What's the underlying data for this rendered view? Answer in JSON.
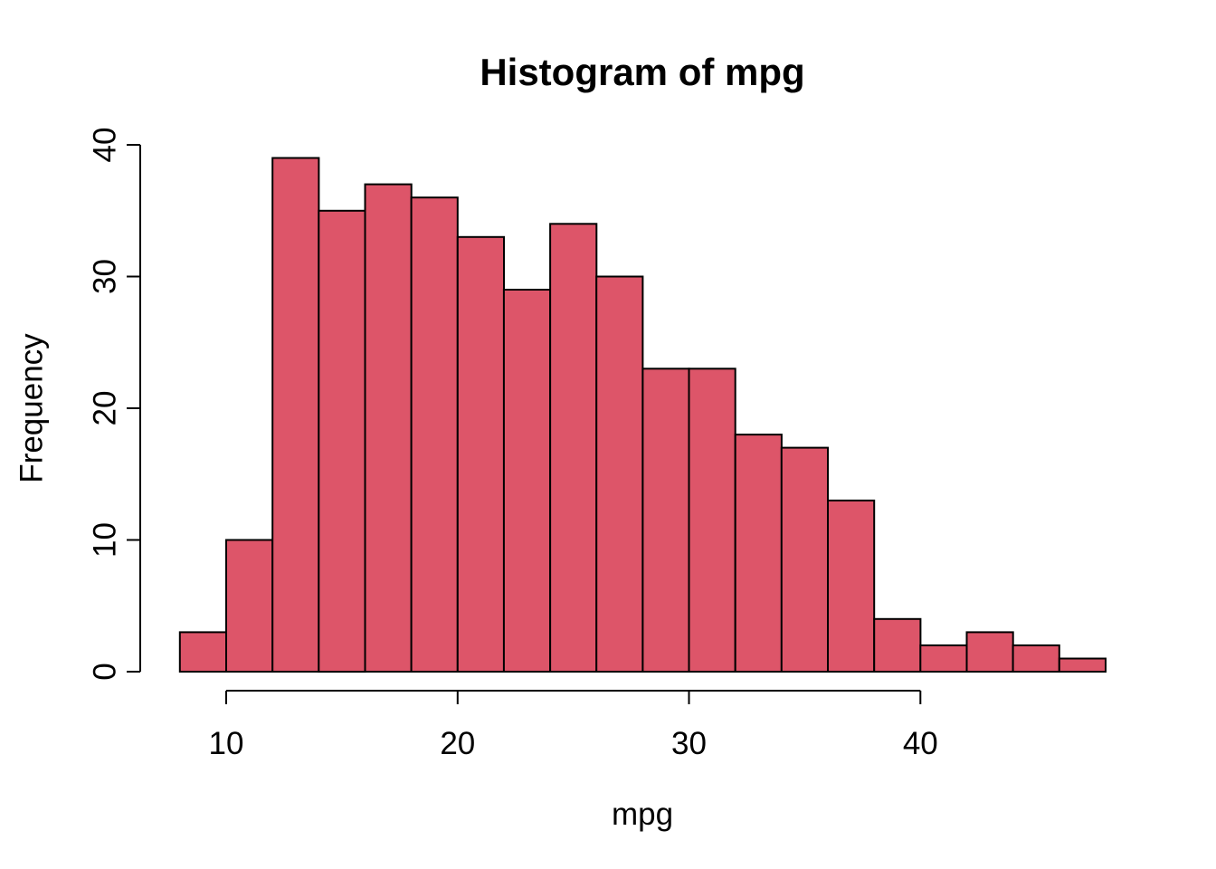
{
  "chart_data": {
    "type": "bar",
    "subtype": "histogram",
    "title": "Histogram of mpg",
    "xlabel": "mpg",
    "ylabel": "Frequency",
    "bin_edges": [
      8,
      10,
      12,
      14,
      16,
      18,
      20,
      22,
      24,
      26,
      28,
      30,
      32,
      34,
      36,
      38,
      40,
      42,
      44,
      46,
      48
    ],
    "counts": [
      3,
      10,
      39,
      35,
      37,
      36,
      33,
      29,
      34,
      30,
      23,
      23,
      18,
      17,
      13,
      4,
      2,
      3,
      2,
      1
    ],
    "x_ticks": [
      10,
      20,
      30,
      40
    ],
    "y_ticks": [
      0,
      10,
      20,
      30,
      40
    ],
    "xlim": [
      8,
      48
    ],
    "ylim": [
      0,
      40
    ],
    "grid": false,
    "legend": "none",
    "colors": {
      "bar_fill": "#DD5569",
      "bar_border": "#000000",
      "axis": "#000000",
      "text": "#000000",
      "background": "#FFFFFF"
    }
  }
}
